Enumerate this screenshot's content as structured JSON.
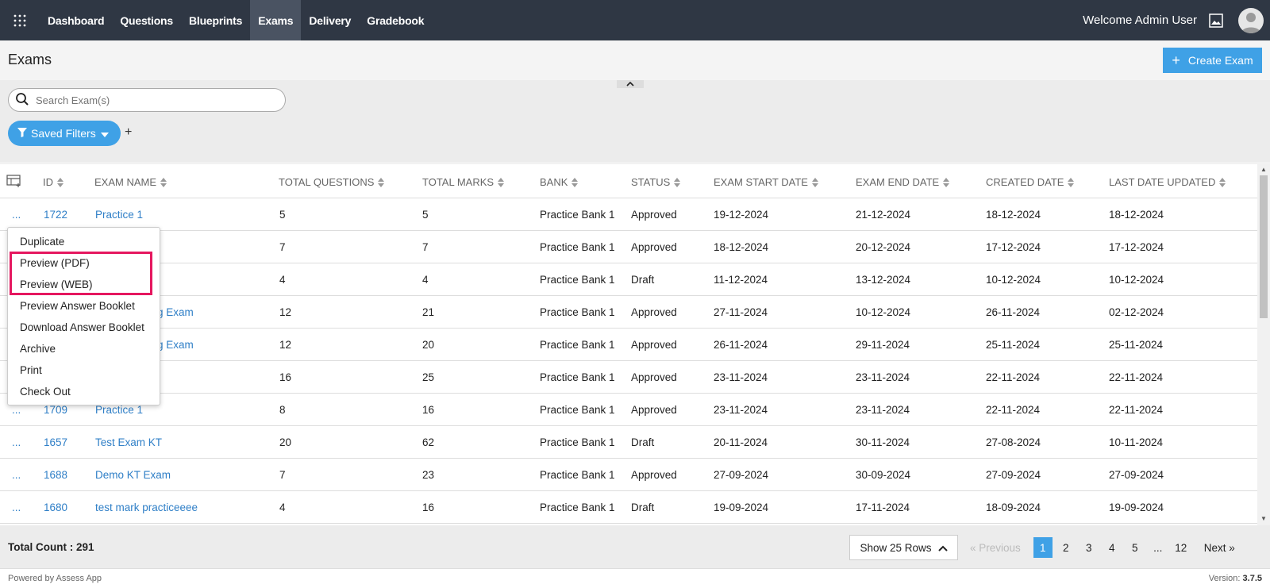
{
  "nav": {
    "items": [
      {
        "label": "Dashboard",
        "active": false
      },
      {
        "label": "Questions",
        "active": false
      },
      {
        "label": "Blueprints",
        "active": false
      },
      {
        "label": "Exams",
        "active": true
      },
      {
        "label": "Delivery",
        "active": false
      },
      {
        "label": "Gradebook",
        "active": false
      }
    ],
    "welcome": "Welcome Admin User"
  },
  "page": {
    "title": "Exams",
    "create_label": "Create Exam"
  },
  "search": {
    "placeholder": "Search Exam(s)"
  },
  "filters": {
    "saved_label": "Saved Filters",
    "add_label": "+"
  },
  "table": {
    "columns": [
      "ID",
      "EXAM NAME",
      "TOTAL QUESTIONS",
      "TOTAL MARKS",
      "BANK",
      "STATUS",
      "EXAM START DATE",
      "EXAM END DATE",
      "CREATED DATE",
      "LAST DATE UPDATED"
    ],
    "rows": [
      {
        "actions": "...",
        "id": "1722",
        "name": "Practice 1",
        "questions": "5",
        "marks": "5",
        "bank": "Practice Bank 1",
        "status": "Approved",
        "start": "19-12-2024",
        "end": "21-12-2024",
        "created": "18-12-2024",
        "updated": "18-12-2024"
      },
      {
        "actions": "...",
        "id": "",
        "name": "",
        "questions": "7",
        "marks": "7",
        "bank": "Practice Bank 1",
        "status": "Approved",
        "start": "18-12-2024",
        "end": "20-12-2024",
        "created": "17-12-2024",
        "updated": "17-12-2024"
      },
      {
        "actions": "...",
        "id": "",
        "name": "",
        "questions": "4",
        "marks": "4",
        "bank": "Practice Bank 1",
        "status": "Draft",
        "start": "11-12-2024",
        "end": "13-12-2024",
        "created": "10-12-2024",
        "updated": "10-12-2024"
      },
      {
        "actions": "...",
        "id": "",
        "name": "g Exam",
        "questions": "12",
        "marks": "21",
        "bank": "Practice Bank 1",
        "status": "Approved",
        "start": "27-11-2024",
        "end": "10-12-2024",
        "created": "26-11-2024",
        "updated": "02-12-2024"
      },
      {
        "actions": "...",
        "id": "",
        "name": "g Exam",
        "questions": "12",
        "marks": "20",
        "bank": "Practice Bank 1",
        "status": "Approved",
        "start": "26-11-2024",
        "end": "29-11-2024",
        "created": "25-11-2024",
        "updated": "25-11-2024"
      },
      {
        "actions": "...",
        "id": "",
        "name": "",
        "questions": "16",
        "marks": "25",
        "bank": "Practice Bank 1",
        "status": "Approved",
        "start": "23-11-2024",
        "end": "23-11-2024",
        "created": "22-11-2024",
        "updated": "22-11-2024"
      },
      {
        "actions": "...",
        "id": "1709",
        "name": "Practice 1",
        "questions": "8",
        "marks": "16",
        "bank": "Practice Bank 1",
        "status": "Approved",
        "start": "23-11-2024",
        "end": "23-11-2024",
        "created": "22-11-2024",
        "updated": "22-11-2024"
      },
      {
        "actions": "...",
        "id": "1657",
        "name": "Test Exam KT",
        "questions": "20",
        "marks": "62",
        "bank": "Practice Bank 1",
        "status": "Draft",
        "start": "20-11-2024",
        "end": "30-11-2024",
        "created": "27-08-2024",
        "updated": "10-11-2024"
      },
      {
        "actions": "...",
        "id": "1688",
        "name": "Demo KT Exam",
        "questions": "7",
        "marks": "23",
        "bank": "Practice Bank 1",
        "status": "Approved",
        "start": "27-09-2024",
        "end": "30-09-2024",
        "created": "27-09-2024",
        "updated": "27-09-2024"
      },
      {
        "actions": "...",
        "id": "1680",
        "name": "test mark practiceeee",
        "questions": "4",
        "marks": "16",
        "bank": "Practice Bank 1",
        "status": "Draft",
        "start": "19-09-2024",
        "end": "17-11-2024",
        "created": "18-09-2024",
        "updated": "19-09-2024"
      }
    ]
  },
  "menu": {
    "items": [
      "Duplicate",
      "Preview (PDF)",
      "Preview (WEB)",
      "Preview Answer Booklet",
      "Download Answer Booklet",
      "Archive",
      "Print",
      "Check Out"
    ]
  },
  "footer": {
    "total": "Total Count : 291",
    "rows_label": "Show 25 Rows",
    "prev_label": "« Previous",
    "pages": [
      "1",
      "2",
      "3",
      "4",
      "5",
      "...",
      "12"
    ],
    "current_page": "1",
    "next_label": "Next »",
    "powered": "Powered by Assess App",
    "version_label": "Version:",
    "version": "3.7.5"
  },
  "colors": {
    "nav_bg": "#2f3744",
    "accent": "#3fa1e6",
    "link": "#2f7fc7",
    "highlight": "#e5175f"
  },
  "icons": [
    "apps-grid-icon",
    "image-icon",
    "user-avatar-icon",
    "search-icon",
    "filter-icon",
    "columns-icon",
    "sort-icon"
  ]
}
